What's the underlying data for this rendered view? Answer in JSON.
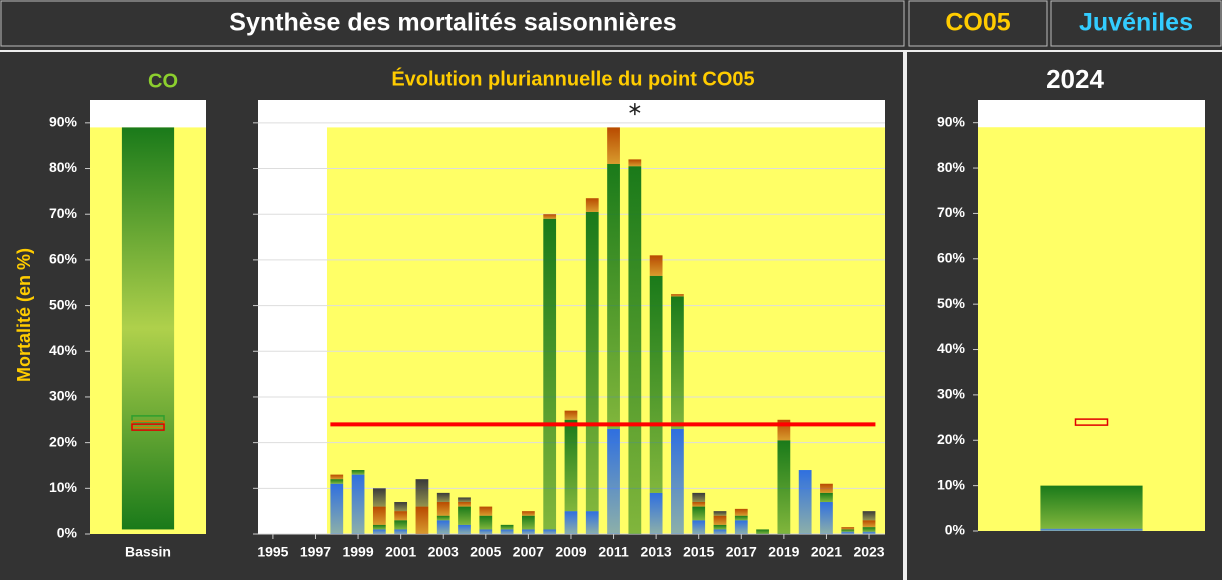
{
  "header": {
    "title": "Synthèse des mortalités saisonnières",
    "site": "CO05",
    "stage": "Juvéniles"
  },
  "chart_data": [
    {
      "type": "range",
      "title": "CO",
      "ylabel": "Mortalité (en %)",
      "categories": [
        "Bassin"
      ],
      "low": [
        1
      ],
      "values": [
        89
      ],
      "color": "#1a7a1a",
      "zone": [
        0,
        89
      ],
      "zone_color": "#ffff66",
      "markers": [
        {
          "value": 25.2,
          "color": "#2e9e2e"
        },
        {
          "value": 24,
          "color": "#e07000"
        },
        {
          "value": 23.4,
          "color": "#e00000"
        }
      ],
      "ylim": [
        0,
        95
      ],
      "yticks": [
        {
          "value": 0,
          "label": "0%"
        },
        {
          "value": 10,
          "label": "10%"
        },
        {
          "value": 20,
          "label": "20%"
        },
        {
          "value": 30,
          "label": "30%"
        },
        {
          "value": 40,
          "label": "40%"
        },
        {
          "value": 50,
          "label": "50%"
        },
        {
          "value": 60,
          "label": "60%"
        },
        {
          "value": 70,
          "label": "70%"
        },
        {
          "value": 80,
          "label": "80%"
        },
        {
          "value": 90,
          "label": "90%"
        }
      ]
    },
    {
      "type": "stacked_bar",
      "title": "Évolution pluriannuelle du point CO05",
      "x": [
        1998,
        1999,
        2000,
        2001,
        2002,
        2003,
        2004,
        2005,
        2006,
        2007,
        2008,
        2009,
        2010,
        2011,
        2012,
        2013,
        2014,
        2015,
        2016,
        2017,
        2018,
        2019,
        2020,
        2021,
        2022,
        2023
      ],
      "series": [
        {
          "color": "#2f6fe0",
          "values": [
            11,
            13,
            1,
            1,
            0,
            3,
            2,
            1,
            1,
            1,
            1,
            5,
            5,
            23,
            0,
            9,
            23,
            3,
            1,
            3,
            0,
            0,
            14,
            7,
            0.5,
            0.5
          ]
        },
        {
          "color": "#1a7a1a",
          "values": [
            1,
            1,
            1,
            2,
            0,
            1,
            4,
            3,
            1,
            3,
            68,
            20,
            65.5,
            58,
            80.5,
            47.5,
            29,
            3,
            1,
            1,
            1,
            20.5,
            0,
            2,
            0.5,
            1
          ]
        },
        {
          "color": "#b84a00",
          "values": [
            1,
            0,
            4,
            2,
            6,
            3,
            1,
            2,
            0,
            1,
            1,
            2,
            3,
            8,
            1.5,
            4.5,
            0.5,
            1,
            2,
            1.5,
            0,
            4.5,
            0,
            2,
            0.5,
            1.5
          ]
        },
        {
          "color": "#3a3a3a",
          "values": [
            0,
            0,
            4,
            2,
            6,
            2,
            1,
            0,
            0,
            0,
            0,
            0,
            0,
            0,
            0,
            0,
            0,
            2,
            1,
            0,
            0,
            0,
            0,
            0,
            0,
            2
          ]
        }
      ],
      "xlim": [
        1994.3,
        2023.75
      ],
      "xticks": [
        1995,
        1997,
        1999,
        2001,
        2003,
        2005,
        2007,
        2009,
        2011,
        2013,
        2015,
        2017,
        2019,
        2021,
        2023
      ],
      "ylim": [
        0,
        95
      ],
      "yticks": [
        0,
        10,
        20,
        30,
        40,
        50,
        60,
        70,
        80,
        90
      ],
      "grid": true,
      "zone": [
        0,
        89
      ],
      "zone_start": 1997.54,
      "zone_color": "#ffff66",
      "reference": 24,
      "reference_color": "#ff0000",
      "outlier": {
        "x": 2012,
        "y": 93
      }
    },
    {
      "type": "stacked_bar",
      "title": "2024",
      "categories": [
        null
      ],
      "series": [
        {
          "color": "#2f6fe0",
          "values": [
            0.5
          ]
        },
        {
          "color": "#1a7a1a",
          "values": [
            9.5
          ]
        }
      ],
      "zone": [
        0,
        89
      ],
      "zone_color": "#ffff66",
      "markers": [
        {
          "value": 24,
          "color": "#e00000"
        }
      ],
      "ylim": [
        0,
        95
      ],
      "yticks": [
        {
          "value": 0,
          "label": "0%"
        },
        {
          "value": 10,
          "label": "10%"
        },
        {
          "value": 20,
          "label": "20%"
        },
        {
          "value": 30,
          "label": "30%"
        },
        {
          "value": 40,
          "label": "40%"
        },
        {
          "value": 50,
          "label": "50%"
        },
        {
          "value": 60,
          "label": "60%"
        },
        {
          "value": 70,
          "label": "70%"
        },
        {
          "value": 80,
          "label": "80%"
        },
        {
          "value": 90,
          "label": "90%"
        }
      ]
    }
  ]
}
